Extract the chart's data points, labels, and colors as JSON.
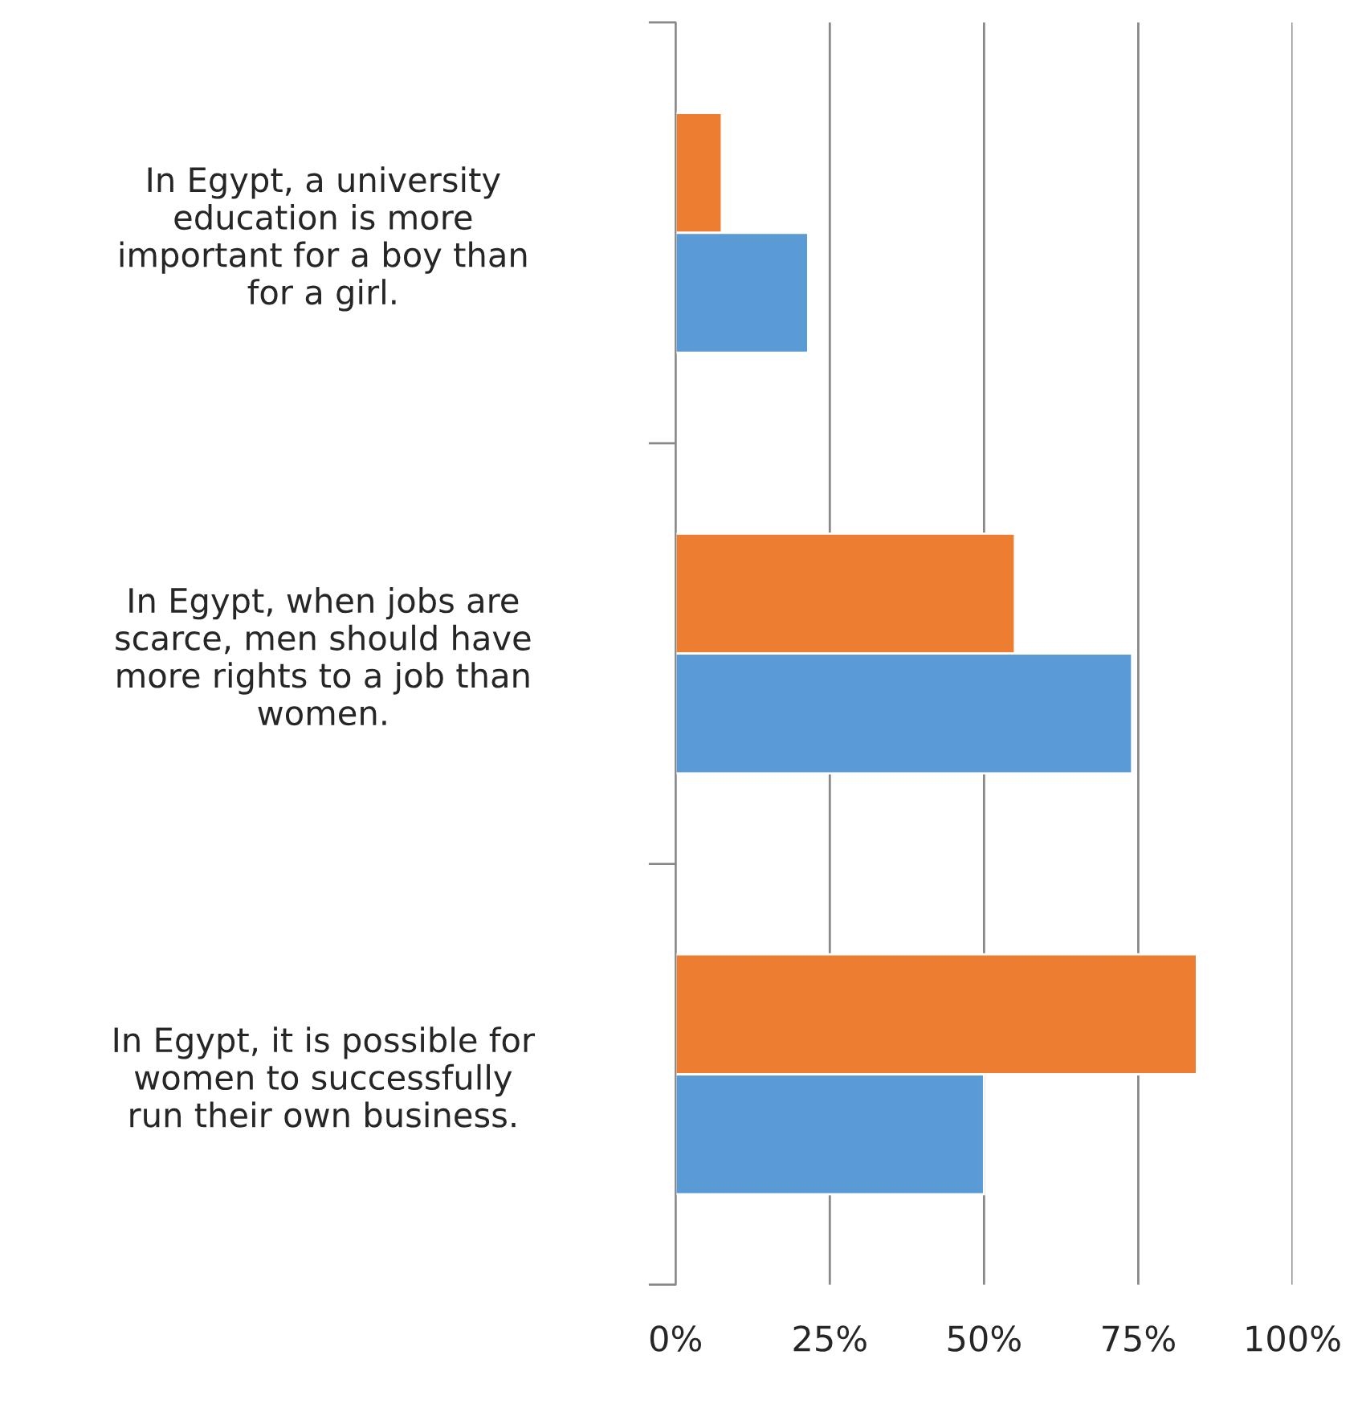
{
  "chart_data": {
    "type": "bar",
    "orientation": "horizontal",
    "categories": [
      "In Egypt, a university\neducation is more\nimportant for a boy than\nfor a girl.",
      "In Egypt, when jobs are\nscarce, men should have\nmore rights to a job than\nwomen.",
      "In Egypt, it is possible for\nwomen to successfully\nrun their own business."
    ],
    "series": [
      {
        "color": "#ed7d31",
        "values": [
          7.5,
          55,
          84.5
        ]
      },
      {
        "color": "#5b9bd5",
        "values": [
          21.5,
          74,
          50
        ]
      }
    ],
    "xlim": [
      0,
      100
    ],
    "xticks": [
      {
        "value": 0,
        "label": "0%"
      },
      {
        "value": 25,
        "label": "25%"
      },
      {
        "value": 50,
        "label": "50%"
      },
      {
        "value": 75,
        "label": "75%"
      },
      {
        "value": 100,
        "label": "100%"
      }
    ],
    "grid": "x"
  }
}
